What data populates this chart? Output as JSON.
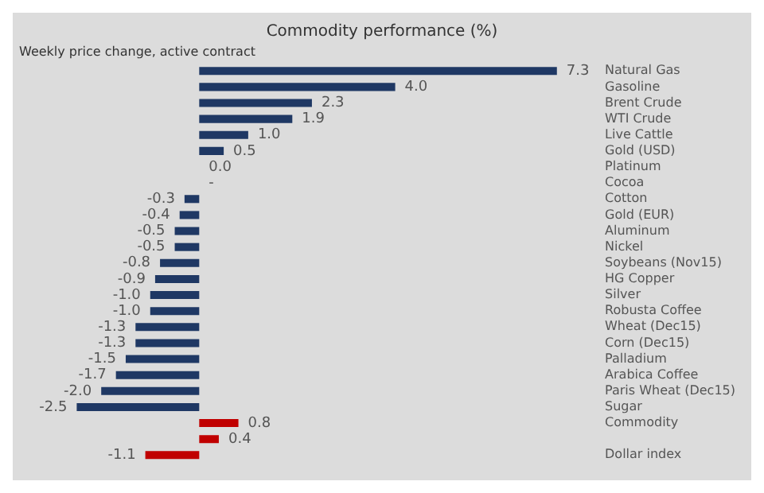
{
  "chart_data": {
    "type": "bar",
    "orientation": "horizontal",
    "title": "Commodity performance (%)",
    "subtitle": "Weekly price change, active contract",
    "categories": [
      "Natural Gas",
      "Gasoline",
      "Brent Crude",
      "WTI Crude",
      "Live Cattle",
      "Gold (USD)",
      "Platinum",
      "Cocoa",
      "Cotton",
      "Gold (EUR)",
      "Aluminum",
      "Nickel",
      "Soybeans (Nov15)",
      "HG Copper",
      "Silver",
      "Robusta Coffee",
      "Wheat (Dec15)",
      "Corn (Dec15)",
      "Palladium",
      "Arabica Coffee",
      "Paris Wheat (Dec15)",
      "Sugar",
      "Commodity",
      null,
      "Dollar index"
    ],
    "values": [
      7.3,
      4.0,
      2.3,
      1.9,
      1.0,
      0.5,
      0.0,
      0.0,
      -0.3,
      -0.4,
      -0.5,
      -0.5,
      -0.8,
      -0.9,
      -1.0,
      -1.0,
      -1.3,
      -1.3,
      -1.5,
      -1.7,
      -2.0,
      -2.5,
      0.8,
      0.4,
      -1.1
    ],
    "value_labels": [
      "7.3",
      "4.0",
      "2.3",
      "1.9",
      "1.0",
      "0.5",
      "0.0",
      "-",
      "-0.3",
      "-0.4",
      "-0.5",
      "-0.5",
      "-0.8",
      "-0.9",
      "-1.0",
      "-1.0",
      "-1.3",
      "-1.3",
      "-1.5",
      "-1.7",
      "-2.0",
      "-2.5",
      "0.8",
      "0.4",
      "-1.1"
    ],
    "colors": [
      "#1f3864",
      "#1f3864",
      "#1f3864",
      "#1f3864",
      "#1f3864",
      "#1f3864",
      "#1f3864",
      "#1f3864",
      "#1f3864",
      "#1f3864",
      "#1f3864",
      "#1f3864",
      "#1f3864",
      "#1f3864",
      "#1f3864",
      "#1f3864",
      "#1f3864",
      "#1f3864",
      "#1f3864",
      "#1f3864",
      "#1f3864",
      "#1f3864",
      "#c00000",
      "#c00000",
      "#c00000"
    ],
    "grid": false,
    "legend": false
  }
}
